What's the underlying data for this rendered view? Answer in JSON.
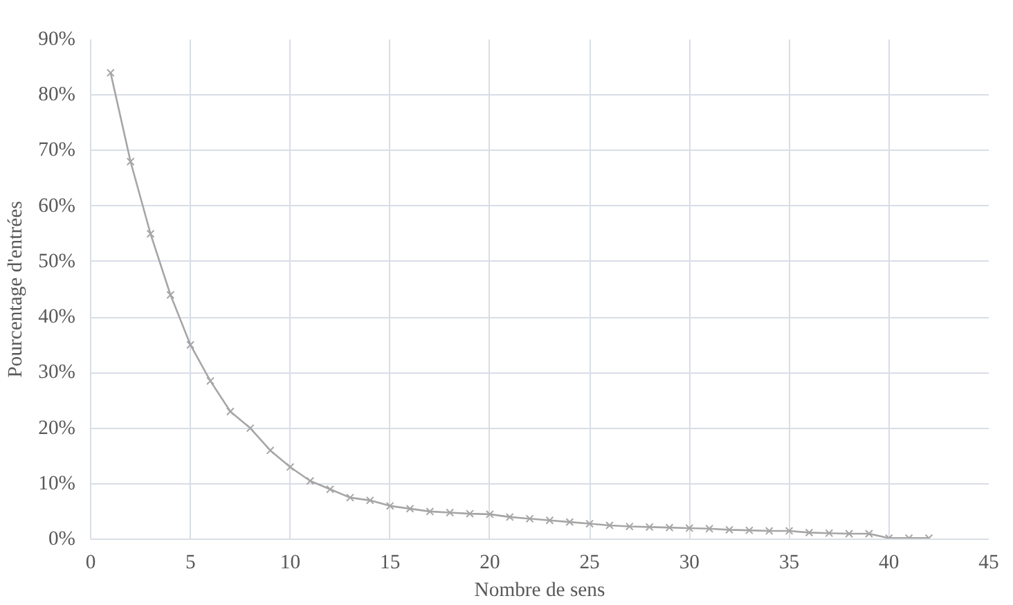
{
  "chart_data": {
    "type": "line",
    "xlabel": "Nombre de sens",
    "ylabel": "Pourcentage d'entrées",
    "x": [
      1,
      2,
      3,
      4,
      5,
      6,
      7,
      8,
      9,
      10,
      11,
      12,
      13,
      14,
      15,
      16,
      17,
      18,
      19,
      20,
      21,
      22,
      23,
      24,
      25,
      26,
      27,
      28,
      29,
      30,
      31,
      32,
      33,
      34,
      35,
      36,
      37,
      38,
      39,
      40,
      41,
      42
    ],
    "series": [
      {
        "color": "#a6a6a6",
        "values": [
          84,
          68,
          55,
          44,
          35,
          28.5,
          23,
          20,
          16,
          13,
          10.5,
          9,
          7.5,
          7,
          6,
          5.5,
          5,
          4.8,
          4.6,
          4.5,
          4,
          3.7,
          3.4,
          3.1,
          2.8,
          2.5,
          2.3,
          2.2,
          2.1,
          2,
          1.9,
          1.7,
          1.6,
          1.5,
          1.5,
          1.2,
          1.1,
          1,
          1,
          0.2,
          0.2,
          0.2
        ]
      }
    ],
    "xlim": [
      0,
      45
    ],
    "xticks": [
      0,
      5,
      10,
      15,
      20,
      25,
      30,
      35,
      40,
      45
    ],
    "ylim": [
      0,
      90
    ],
    "yticks": [
      {
        "value": 0,
        "label": "0%"
      },
      {
        "value": 10,
        "label": "10%"
      },
      {
        "value": 20,
        "label": "20%"
      },
      {
        "value": 30,
        "label": "30%"
      },
      {
        "value": 40,
        "label": "40%"
      },
      {
        "value": 50,
        "label": "50%"
      },
      {
        "value": 60,
        "label": "60%"
      },
      {
        "value": 70,
        "label": "70%"
      },
      {
        "value": 80,
        "label": "80%"
      },
      {
        "value": 90,
        "label": "90%"
      }
    ],
    "grid": true,
    "marker": "cross",
    "line_style": "solid"
  }
}
